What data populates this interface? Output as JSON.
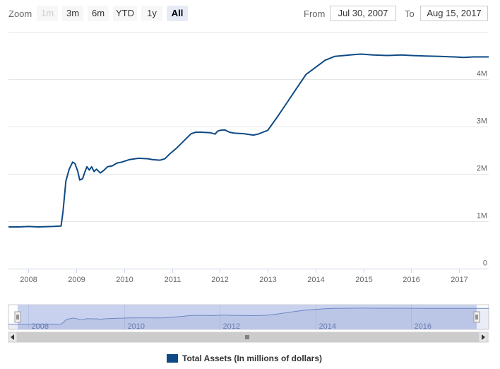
{
  "range_selector": {
    "zoom_label": "Zoom",
    "buttons": [
      {
        "label": "1m",
        "state": "disabled"
      },
      {
        "label": "3m",
        "state": "normal"
      },
      {
        "label": "6m",
        "state": "normal"
      },
      {
        "label": "YTD",
        "state": "normal"
      },
      {
        "label": "1y",
        "state": "normal"
      },
      {
        "label": "All",
        "state": "active"
      }
    ],
    "from_label": "From",
    "from_value": "Jul 30, 2007",
    "to_label": "To",
    "to_value": "Aug 15, 2017"
  },
  "colors": {
    "series": "#0e4a85",
    "navigator_fill": "#c8d2ee",
    "navigator_line": "#6f86c4",
    "grid": "#e6e6e6"
  },
  "chart_data": {
    "type": "line",
    "title": "",
    "xlabel": "",
    "ylabel": "",
    "xlim": [
      2007.58,
      2017.62
    ],
    "ylim": [
      0,
      5000000
    ],
    "y_ticks": [
      0,
      1000000,
      2000000,
      3000000,
      4000000
    ],
    "y_tick_labels": [
      "0",
      "1M",
      "2M",
      "3M",
      "4M"
    ],
    "x_ticks": [
      2008,
      2009,
      2010,
      2011,
      2012,
      2013,
      2014,
      2015,
      2016,
      2017
    ],
    "x_tick_labels": [
      "2008",
      "2009",
      "2010",
      "2011",
      "2012",
      "2013",
      "2014",
      "2015",
      "2016",
      "2017"
    ],
    "grid": true,
    "legend": "bottom",
    "series": [
      {
        "name": "Total Assets (In millions of dollars)",
        "x": [
          2007.58,
          2007.8,
          2008.0,
          2008.2,
          2008.5,
          2008.68,
          2008.72,
          2008.78,
          2008.85,
          2008.92,
          2008.97,
          2009.03,
          2009.07,
          2009.13,
          2009.18,
          2009.22,
          2009.27,
          2009.32,
          2009.37,
          2009.42,
          2009.5,
          2009.58,
          2009.65,
          2009.75,
          2009.85,
          2009.95,
          2010.1,
          2010.3,
          2010.5,
          2010.6,
          2010.75,
          2010.85,
          2010.95,
          2011.1,
          2011.25,
          2011.4,
          2011.5,
          2011.6,
          2011.8,
          2011.9,
          2011.95,
          2012.0,
          2012.1,
          2012.2,
          2012.3,
          2012.5,
          2012.7,
          2012.8,
          2012.9,
          2013.0,
          2013.2,
          2013.4,
          2013.6,
          2013.8,
          2014.0,
          2014.2,
          2014.4,
          2014.6,
          2014.8,
          2014.95,
          2015.2,
          2015.5,
          2015.8,
          2016.0,
          2016.3,
          2016.6,
          2016.9,
          2017.1,
          2017.3,
          2017.62
        ],
        "values": [
          880000,
          880000,
          890000,
          880000,
          890000,
          900000,
          1200000,
          1850000,
          2100000,
          2250000,
          2220000,
          2050000,
          1870000,
          1900000,
          2050000,
          2150000,
          2080000,
          2150000,
          2050000,
          2100000,
          2020000,
          2080000,
          2150000,
          2170000,
          2230000,
          2250000,
          2300000,
          2330000,
          2320000,
          2300000,
          2290000,
          2320000,
          2420000,
          2550000,
          2700000,
          2850000,
          2880000,
          2880000,
          2870000,
          2840000,
          2900000,
          2920000,
          2930000,
          2880000,
          2860000,
          2850000,
          2820000,
          2840000,
          2880000,
          2920000,
          3200000,
          3500000,
          3800000,
          4100000,
          4250000,
          4400000,
          4480000,
          4500000,
          4520000,
          4530000,
          4510000,
          4500000,
          4510000,
          4500000,
          4490000,
          4480000,
          4470000,
          4460000,
          4470000,
          4470000
        ]
      }
    ]
  },
  "navigator": {
    "x_tick_labels": [
      "2008",
      "2010",
      "2012",
      "2014",
      "2016"
    ]
  }
}
